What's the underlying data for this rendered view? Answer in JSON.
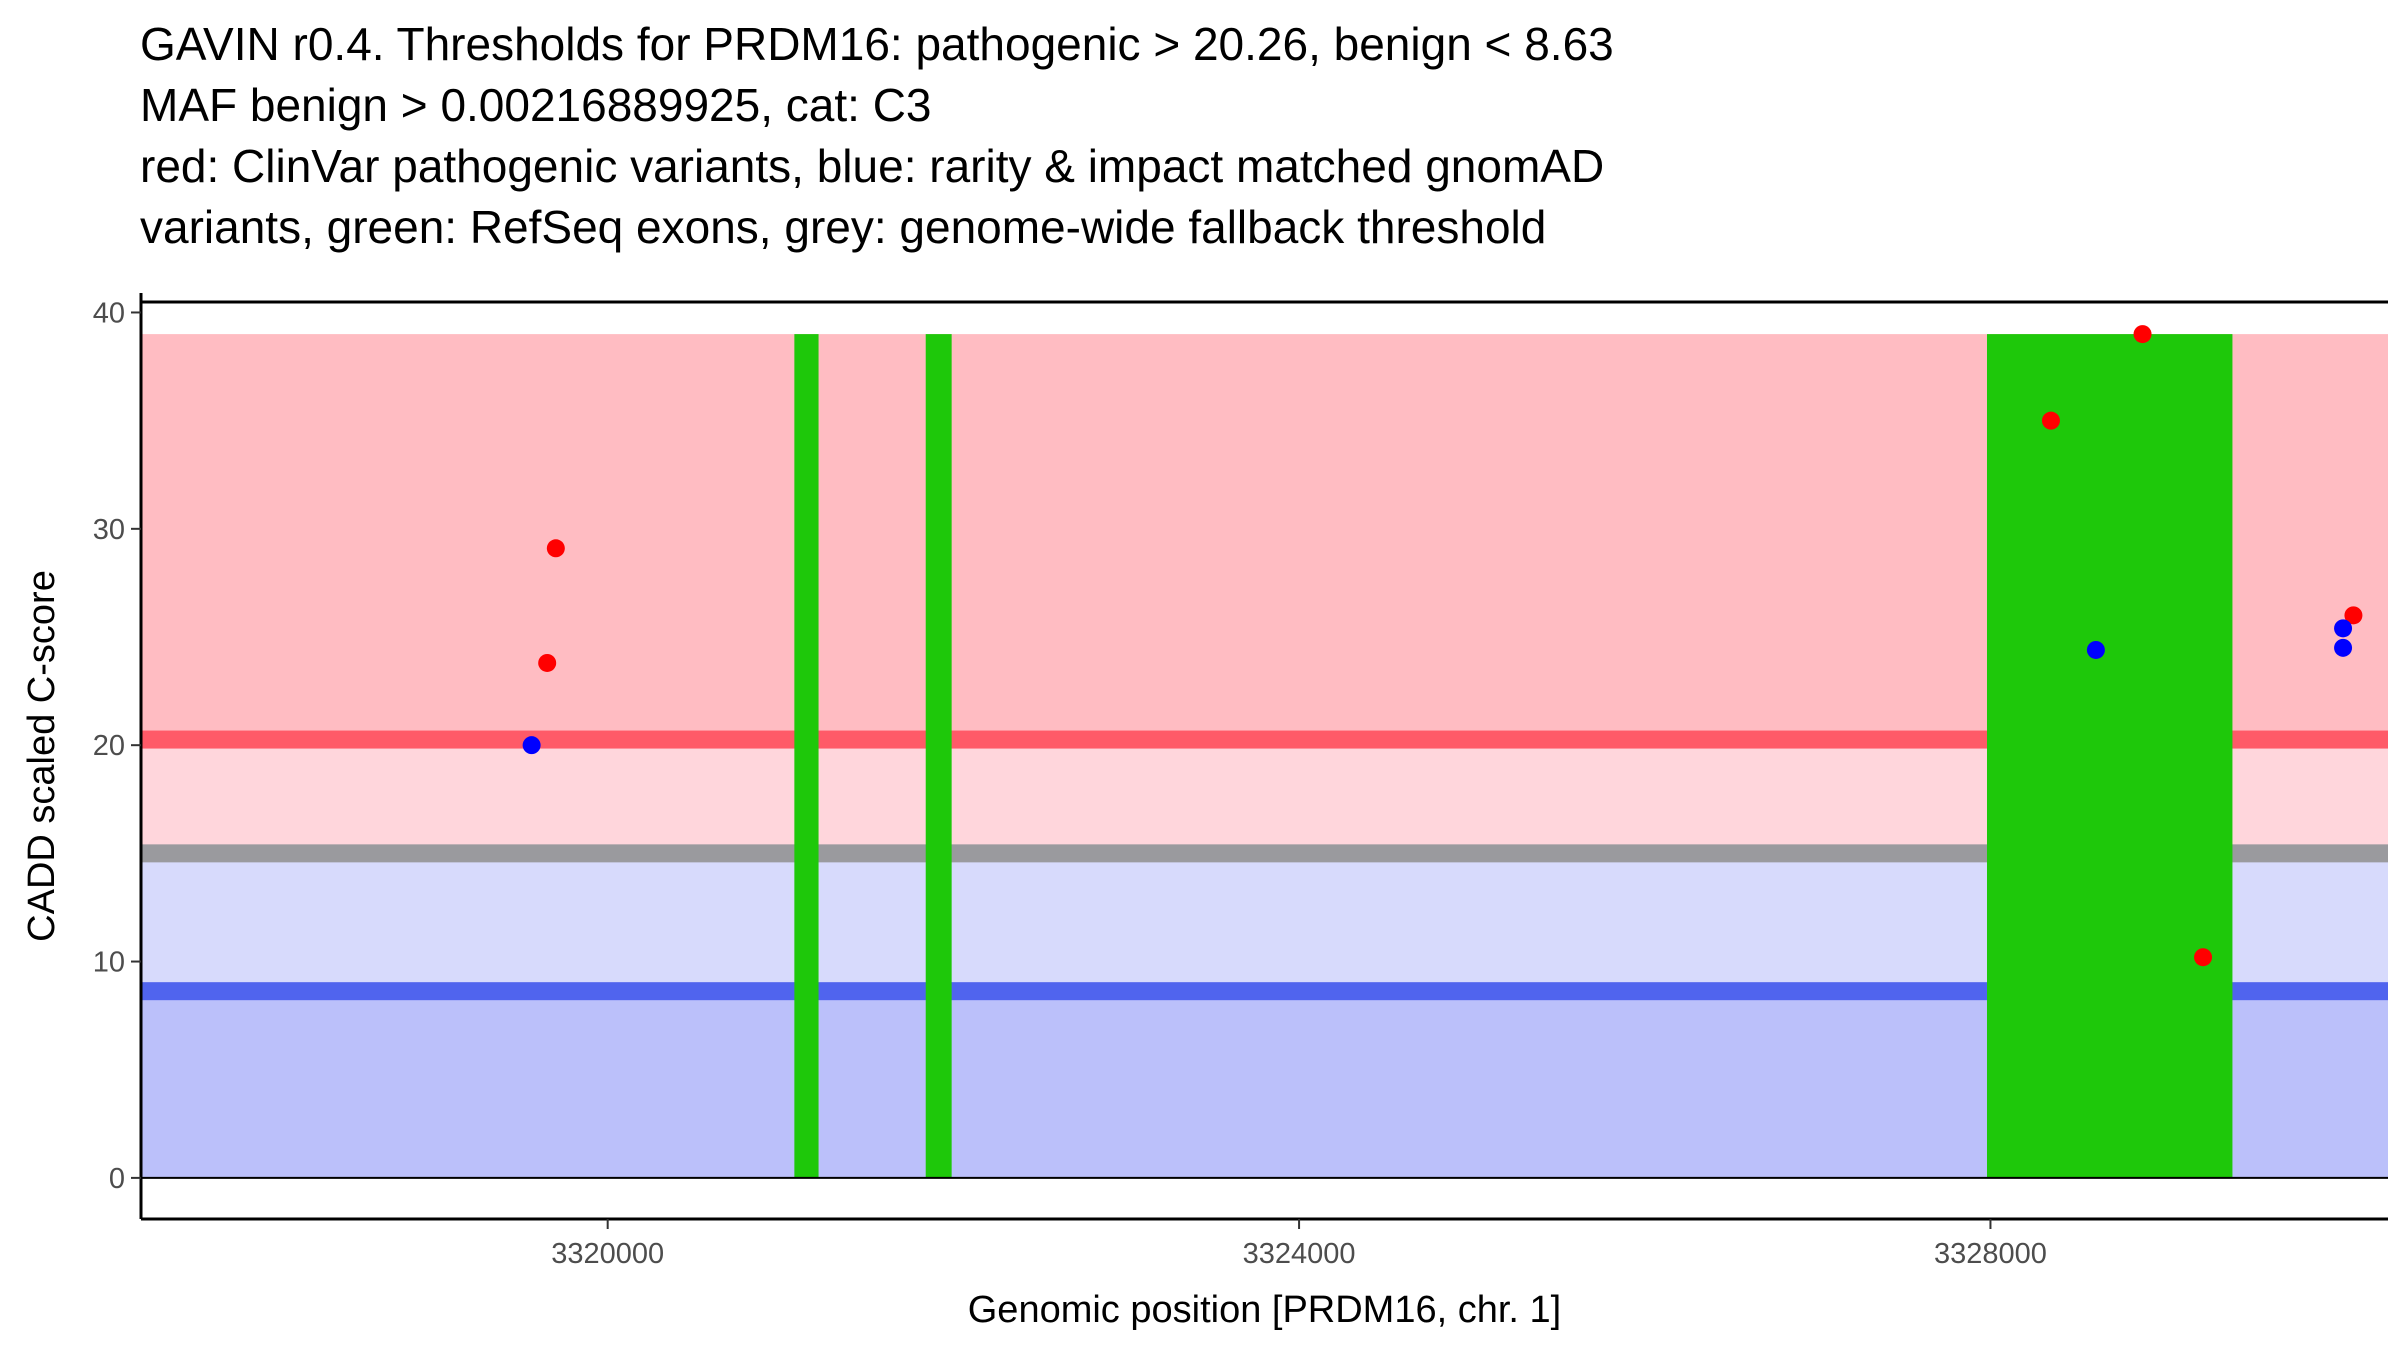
{
  "chart_data": {
    "type": "scatter",
    "title_lines": [
      "GAVIN r0.4. Thresholds for PRDM16: pathogenic > 20.26, benign < 8.63",
      "MAF benign > 0.00216889925, cat: C3",
      "red: ClinVar pathogenic variants, blue: rarity & impact matched gnomAD",
      "variants, green: RefSeq exons, grey: genome-wide fallback threshold"
    ],
    "xlabel": "Genomic position [PRDM16, chr. 1]",
    "ylabel": "CADD scaled C-score",
    "xlim": [
      3317300,
      3330300
    ],
    "ylim": [
      -1.9,
      40.9
    ],
    "x_ticks": [
      3320000,
      3324000,
      3328000
    ],
    "y_ticks": [
      0,
      10,
      20,
      30,
      40
    ],
    "thresholds": {
      "pathogenic": 20.26,
      "benign": 8.63,
      "fallback": 15.0
    },
    "bands": [
      {
        "name": "pathogenic-region",
        "y0": 20.26,
        "y1": 39,
        "color": "#ffbcc2"
      },
      {
        "name": "uncertain-pathogenic-region",
        "y0": 15.0,
        "y1": 20.26,
        "color": "#ffd6dc"
      },
      {
        "name": "uncertain-benign-region",
        "y0": 8.63,
        "y1": 15.0,
        "color": "#d7dafc"
      },
      {
        "name": "benign-region",
        "y0": 0,
        "y1": 8.63,
        "color": "#bbc0fa"
      }
    ],
    "threshold_lines": [
      {
        "name": "pathogenic-threshold",
        "y": 20.26,
        "color": "#ff5a68"
      },
      {
        "name": "fallback-threshold",
        "y": 15.0,
        "color": "#9a9a9e"
      },
      {
        "name": "benign-threshold",
        "y": 8.63,
        "color": "#5064ee"
      }
    ],
    "exons": [
      {
        "start": 3321080,
        "end": 3321220
      },
      {
        "start": 3321840,
        "end": 3321990
      },
      {
        "start": 3327980,
        "end": 3329400
      }
    ],
    "exon_ymax": 39,
    "series": [
      {
        "name": "ClinVar pathogenic",
        "color": "#ff0000",
        "points": [
          {
            "x": 3319700,
            "y": 29.1
          },
          {
            "x": 3319650,
            "y": 23.8
          },
          {
            "x": 3328350,
            "y": 35.0
          },
          {
            "x": 3328880,
            "y": 39.0
          },
          {
            "x": 3329230,
            "y": 10.2
          },
          {
            "x": 3330100,
            "y": 26.0
          }
        ]
      },
      {
        "name": "gnomAD matched",
        "color": "#0000ff",
        "points": [
          {
            "x": 3319560,
            "y": 20.0
          },
          {
            "x": 3328610,
            "y": 24.4
          },
          {
            "x": 3330040,
            "y": 25.4
          },
          {
            "x": 3330040,
            "y": 24.5
          }
        ]
      }
    ]
  }
}
